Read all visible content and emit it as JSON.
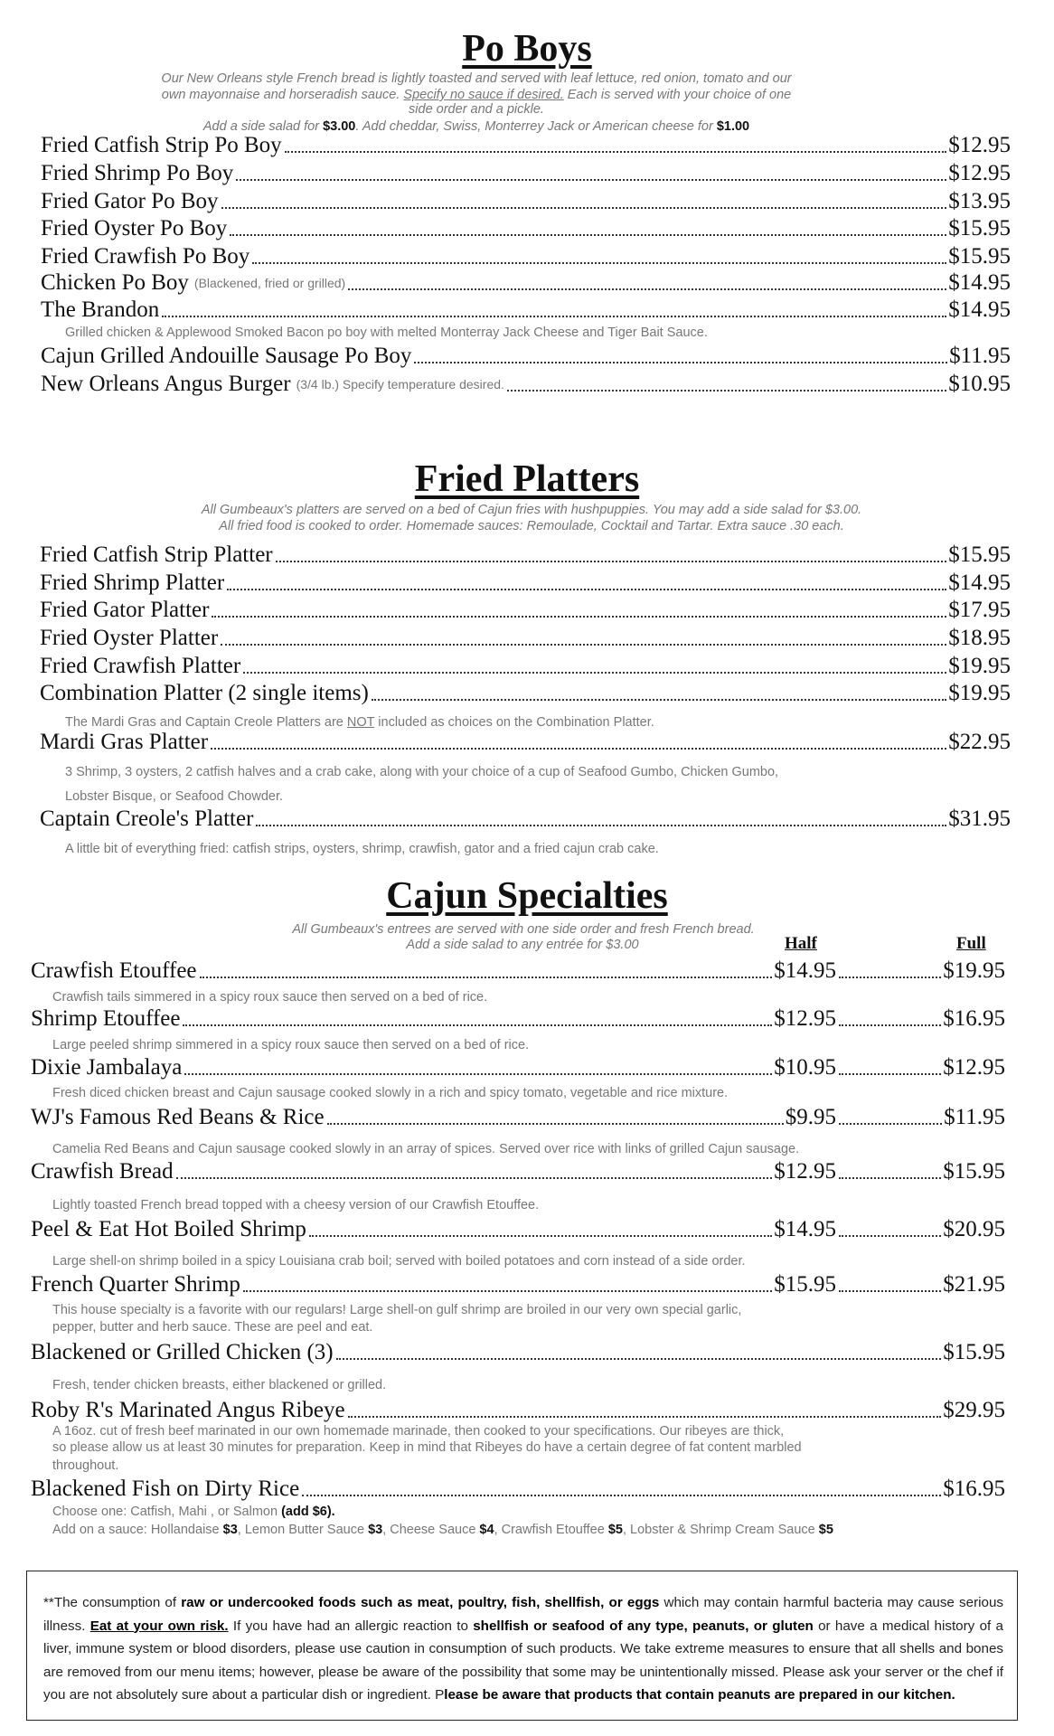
{
  "po_boys": {
    "title": "Po Boys",
    "intro": [
      [
        {
          "t": "Our New Orleans style French bread is lightly toasted and served with leaf lettuce, red onion, tomato and our"
        }
      ],
      [
        {
          "t": "own mayonnaise and horseradish sauce.  "
        },
        {
          "t": "Specify no sauce if desired.",
          "u": true
        },
        {
          "t": "  Each is served with your choice of one"
        }
      ],
      [
        {
          "t": "side order and a pickle."
        }
      ],
      [
        {
          "t": "Add a side salad for "
        },
        {
          "t": "$3.00",
          "b": true
        },
        {
          "t": ". Add cheddar, Swiss, Monterrey Jack or American cheese for "
        },
        {
          "t": "$1.00",
          "b": true
        }
      ]
    ],
    "items": [
      {
        "name": "Fried Catfish Strip Po Boy",
        "price": "$12.95"
      },
      {
        "name": "Fried Shrimp Po Boy",
        "price": "$12.95"
      },
      {
        "name": "Fried Gator Po Boy",
        "price": "$13.95"
      },
      {
        "name": "Fried Oyster Po Boy",
        "price": "$15.95"
      },
      {
        "name": "Fried Crawfish Po Boy",
        "price": "$15.95"
      },
      {
        "name": "Chicken Po Boy",
        "note": "(Blackened, fried or grilled)",
        "price": "$14.95"
      },
      {
        "name": "The Brandon",
        "price": "$14.95",
        "desc": [
          [
            {
              "t": "Grilled chicken & Applewood Smoked Bacon po boy with melted Monterray Jack Cheese and Tiger Bait Sauce."
            }
          ]
        ]
      },
      {
        "name": "Cajun Grilled Andouille Sausage Po Boy",
        "price": "$11.95"
      },
      {
        "name": "New Orleans Angus Burger",
        "note": "(3/4 lb.) Specify temperature desired.",
        "price": "$10.95"
      }
    ]
  },
  "fried_platters": {
    "title": "Fried Platters",
    "intro": [
      [
        {
          "t": "All Gumbeaux's platters are served on a bed of Cajun fries with hushpuppies.  You may add a side salad for $3.00."
        }
      ],
      [
        {
          "t": "All fried food is cooked to order. Homemade sauces: Remoulade, Cocktail and Tartar.  Extra sauce .30 each."
        }
      ]
    ],
    "items": [
      {
        "name": "Fried Catfish Strip Platter",
        "price": "$15.95"
      },
      {
        "name": "Fried Shrimp Platter",
        "price": "$14.95"
      },
      {
        "name": "Fried Gator Platter",
        "price": "$17.95"
      },
      {
        "name": "Fried Oyster Platter",
        "price": "$18.95"
      },
      {
        "name": "Fried Crawfish Platter",
        "price": "$19.95"
      },
      {
        "name": "Combination Platter (2 single items)",
        "price": "$19.95",
        "desc": [
          [
            {
              "t": "The Mardi Gras and Captain Creole Platters are "
            },
            {
              "t": "NOT",
              "u": true
            },
            {
              "t": " included as choices on the Combination Platter."
            }
          ]
        ]
      },
      {
        "name": "Mardi Gras Platter",
        "price": "$22.95",
        "desc": [
          [
            {
              "t": "3 Shrimp, 3 oysters,  2 catfish halves and a crab cake, along with your choice of a cup of Seafood Gumbo, Chicken Gumbo,"
            }
          ],
          [
            {
              "t": "Lobster Bisque, or Seafood Chowder."
            }
          ]
        ]
      },
      {
        "name": "Captain Creole's Platter",
        "price": "$31.95",
        "desc": [
          [
            {
              "t": "A little bit of everything fried: catfish strips, oysters, shrimp, crawfish, gator and a fried cajun crab cake."
            }
          ]
        ]
      }
    ]
  },
  "cajun_specialties": {
    "title": "Cajun Specialties",
    "intro": [
      [
        {
          "t": "All Gumbeaux's entrees are served with one side order and fresh French bread."
        }
      ],
      [
        {
          "t": "Add a side salad to any entrée for $3.00"
        }
      ]
    ],
    "col_half": "Half",
    "col_full": "Full",
    "items": [
      {
        "name": "Crawfish Etouffee",
        "half": "$14.95",
        "full": "$19.95",
        "desc": [
          [
            {
              "t": "Crawfish tails simmered in a spicy roux sauce then served on a bed of rice."
            }
          ]
        ]
      },
      {
        "name": "Shrimp Etouffee",
        "half": "$12.95",
        "full": "$16.95",
        "desc": [
          [
            {
              "t": "Large peeled shrimp simmered in a spicy roux sauce then served on a bed of rice."
            }
          ]
        ]
      },
      {
        "name": "Dixie Jambalaya",
        "half": "$10.95",
        "full": "$12.95",
        "desc": [
          [
            {
              "t": "Fresh diced chicken breast and Cajun sausage cooked slowly in a rich and spicy tomato, vegetable and rice mixture."
            }
          ]
        ]
      },
      {
        "name": "WJ's Famous Red Beans & Rice",
        "half": "$9.95",
        "full": "$11.95",
        "desc": [
          [
            {
              "t": "Camelia Red Beans and Cajun sausage cooked slowly in an array of spices.  Served over rice with links of grilled Cajun sausage."
            }
          ]
        ]
      },
      {
        "name": "Crawfish Bread",
        "half": "$12.95",
        "full": "$15.95",
        "desc": [
          [
            {
              "t": "Lightly toasted French bread topped with a cheesy version of our Crawfish Etouffee."
            }
          ]
        ]
      },
      {
        "name": "Peel & Eat Hot Boiled Shrimp",
        "half": "$14.95",
        "full": "$20.95",
        "desc": [
          [
            {
              "t": "Large shell-on shrimp boiled in a spicy Louisiana crab boil; served with boiled potatoes and corn instead of a side order."
            }
          ]
        ]
      },
      {
        "name": "French Quarter Shrimp",
        "half": "$15.95",
        "full": "$21.95",
        "desc": [
          [
            {
              "t": "This house specialty is a favorite with our regulars!  Large shell-on gulf shrimp are broiled in our very own special garlic,"
            }
          ],
          [
            {
              "t": " pepper, butter and herb sauce.  These are peel and eat."
            }
          ]
        ]
      },
      {
        "name": "Blackened or Grilled Chicken (3)",
        "full": "$15.95",
        "desc": [
          [
            {
              "t": "Fresh, tender chicken breasts, either blackened or grilled."
            }
          ]
        ]
      },
      {
        "name": "Roby R's Marinated Angus Ribeye",
        "full": "$29.95",
        "desc": [
          [
            {
              "t": "A 16oz. cut of fresh beef marinated in our own homemade marinade, then cooked to your specifications. Our ribeyes are thick,"
            }
          ],
          [
            {
              "t": " so please allow us at least 30 minutes for preparation. Keep in mind that Ribeyes do have a certain degree of fat content marbled"
            }
          ],
          [
            {
              "t": " throughout."
            }
          ]
        ]
      },
      {
        "name": "Blackened Fish on Dirty Rice",
        "full": "$16.95",
        "desc": [
          [
            {
              "t": "Choose one: Catfish, Mahi , or Salmon "
            },
            {
              "t": "(add  $6).",
              "b": true
            }
          ],
          [
            {
              "t": " Add on a sauce: Hollandaise "
            },
            {
              "t": "$3",
              "b": true
            },
            {
              "t": ", Lemon Butter Sauce "
            },
            {
              "t": "$3",
              "b": true
            },
            {
              "t": ", Cheese Sauce "
            },
            {
              "t": "$4",
              "b": true
            },
            {
              "t": ", Crawfish Etouffee "
            },
            {
              "t": "$5",
              "b": true
            },
            {
              "t": ", Lobster & Shrimp Cream Sauce "
            },
            {
              "t": "$5",
              "b": true
            }
          ]
        ]
      }
    ]
  },
  "disclaimer": [
    {
      "t": "**The consumption of "
    },
    {
      "t": "raw or undercooked foods such as meat, poultry, fish, shellfish, or eggs",
      "b": true
    },
    {
      "t": " which may contain harmful bacteria may cause serious illness.  "
    },
    {
      "t": "Eat at your own risk.",
      "b": true,
      "u": true
    },
    {
      "t": "  If you have had an allergic reaction to "
    },
    {
      "t": "shellfish or seafood of any type, peanuts, or gluten",
      "b": true
    },
    {
      "t": " or have a medical history of a liver, immune system or blood disorders, please use caution in consumption of such products.  We take extreme measures to ensure that all shells and bones are removed from our menu items; however, please be aware of the possibility that some may be unintentionally missed.  Please ask your server or the chef if you are not absolutely sure about a particular dish or ingredient.  P"
    },
    {
      "t": "lease be aware that products that contain peanuts are prepared in our kitchen.",
      "b": true
    }
  ]
}
